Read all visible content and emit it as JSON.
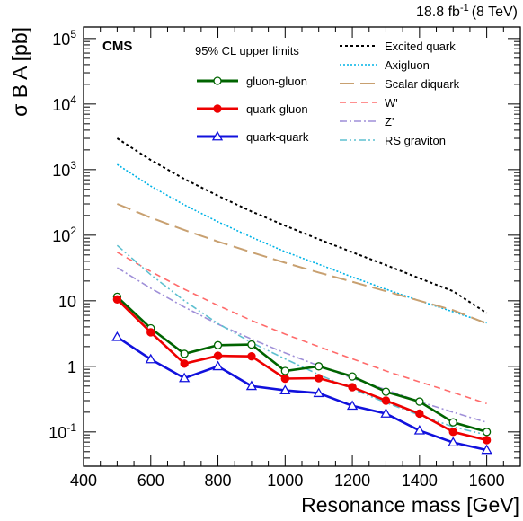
{
  "header": {
    "lumi_value": "18.8 fb",
    "lumi_exp": "-1",
    "energy": "(8 TeV)"
  },
  "chart_data": {
    "type": "line",
    "experiment_label": "CMS",
    "ylabel": "σ B A [pb]",
    "xlabel": "Resonance mass [GeV]",
    "xlim": [
      400,
      1700
    ],
    "ylim": [
      0.03,
      150000
    ],
    "yscale": "log",
    "x_ticks": [
      400,
      600,
      800,
      1000,
      1200,
      1400,
      1600
    ],
    "y_ticks": [
      {
        "value": 0.1,
        "base": "10",
        "exp": "-1"
      },
      {
        "value": 1,
        "base": "1",
        "exp": ""
      },
      {
        "value": 10,
        "base": "10",
        "exp": ""
      },
      {
        "value": 100,
        "base": "10",
        "exp": "2"
      },
      {
        "value": 1000,
        "base": "10",
        "exp": "3"
      },
      {
        "value": 10000,
        "base": "10",
        "exp": "4"
      },
      {
        "value": 100000,
        "base": "10",
        "exp": "5"
      }
    ],
    "legend_limits_title": "95% CL upper limits",
    "series": [
      {
        "name": "gluon-gluon",
        "color": "#006400",
        "marker": "open-circle",
        "x": [
          500,
          600,
          700,
          800,
          900,
          1000,
          1100,
          1200,
          1300,
          1400,
          1500,
          1600
        ],
        "y": [
          11.5,
          3.8,
          1.55,
          2.1,
          2.15,
          0.85,
          1.0,
          0.7,
          0.41,
          0.29,
          0.14,
          0.1
        ]
      },
      {
        "name": "quark-gluon",
        "color": "#ee0000",
        "marker": "filled-circle",
        "x": [
          500,
          600,
          700,
          800,
          900,
          1000,
          1100,
          1200,
          1300,
          1400,
          1500,
          1600
        ],
        "y": [
          10.5,
          3.3,
          1.1,
          1.45,
          1.42,
          0.65,
          0.66,
          0.48,
          0.3,
          0.19,
          0.1,
          0.075
        ]
      },
      {
        "name": "quark-quark",
        "color": "#1111dd",
        "marker": "open-triangle",
        "x": [
          500,
          600,
          700,
          800,
          900,
          1000,
          1100,
          1200,
          1300,
          1400,
          1500,
          1600
        ],
        "y": [
          2.8,
          1.28,
          0.66,
          1.0,
          0.5,
          0.43,
          0.39,
          0.25,
          0.19,
          0.105,
          0.069,
          0.053
        ]
      }
    ],
    "theory": [
      {
        "name": "Excited quark",
        "color": "#000000",
        "dash": "3,3",
        "width": 2,
        "x": [
          500,
          600,
          700,
          800,
          900,
          1000,
          1100,
          1200,
          1300,
          1400,
          1500,
          1600
        ],
        "y": [
          3000,
          1400,
          720,
          400,
          230,
          140,
          87,
          55,
          35,
          22,
          14,
          6.5
        ]
      },
      {
        "name": "Axigluon",
        "color": "#00b3e6",
        "dash": "2,2",
        "width": 1.6,
        "x": [
          500,
          600,
          700,
          800,
          900,
          1000,
          1100,
          1200,
          1300,
          1400,
          1500,
          1600
        ],
        "y": [
          1200,
          560,
          290,
          160,
          93,
          56,
          36,
          23,
          15,
          10,
          6.8,
          4.6
        ]
      },
      {
        "name": "Scalar diquark",
        "color": "#c8a070",
        "dash": "16,7",
        "width": 2,
        "x": [
          500,
          600,
          700,
          800,
          900,
          1000,
          1100,
          1200,
          1300,
          1400,
          1500,
          1600
        ],
        "y": [
          300,
          185,
          120,
          80,
          55,
          38,
          27,
          19.5,
          14,
          10,
          7.2,
          4.5
        ]
      },
      {
        "name": "W'",
        "color": "#ff6b6b",
        "dash": "7,5",
        "width": 1.6,
        "x": [
          500,
          600,
          700,
          800,
          900,
          1000,
          1100,
          1200,
          1300,
          1400,
          1500,
          1600
        ],
        "y": [
          55,
          28,
          15,
          8.5,
          5.0,
          3.1,
          2.0,
          1.3,
          0.85,
          0.58,
          0.4,
          0.27
        ]
      },
      {
        "name": "Z'",
        "color": "#9f8fd8",
        "dash": "8,3,2,3",
        "width": 1.6,
        "x": [
          500,
          600,
          700,
          800,
          900,
          1000,
          1100,
          1200,
          1300,
          1400,
          1500,
          1600
        ],
        "y": [
          32,
          15.5,
          8.0,
          4.4,
          2.6,
          1.6,
          1.02,
          0.66,
          0.44,
          0.29,
          0.2,
          0.14
        ]
      },
      {
        "name": "RS graviton",
        "color": "#5fc0d0",
        "dash": "8,3,2,3,2,3",
        "width": 1.6,
        "x": [
          500,
          600,
          700,
          800,
          900,
          1000,
          1100,
          1200,
          1300,
          1400,
          1500,
          1600
        ],
        "y": [
          70,
          25,
          10,
          4.5,
          2.3,
          1.3,
          0.75,
          0.45,
          0.28,
          0.18,
          0.12,
          0.09
        ]
      }
    ]
  }
}
